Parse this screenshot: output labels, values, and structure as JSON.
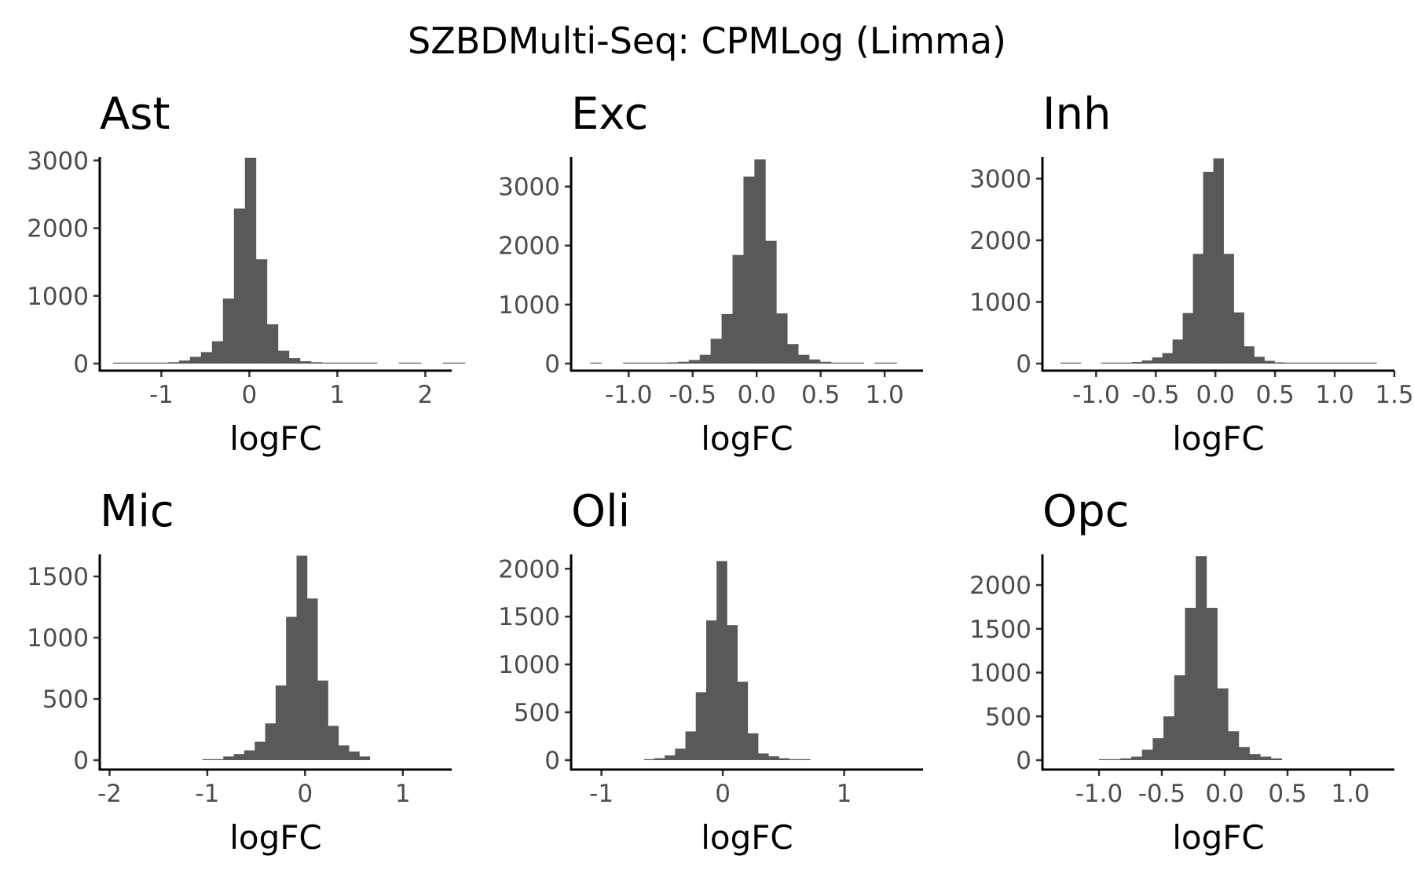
{
  "title": "SZBDMulti-Seq: CPMLog (Limma)",
  "colors": {
    "bar": "#595959",
    "axis": "#000000",
    "tick_text": "#4d4d4d"
  },
  "chart_data": [
    {
      "type": "bar",
      "title": "Ast",
      "xlabel": "logFC",
      "ylabel": "",
      "xlim": [
        -1.7,
        2.3
      ],
      "ylim": [
        0,
        3050
      ],
      "xticks": [
        -1,
        0,
        1,
        2
      ],
      "xtick_labels": [
        "-1",
        "0",
        "1",
        "2"
      ],
      "yticks": [
        0,
        1000,
        2000,
        3000
      ],
      "ytick_labels": [
        "0",
        "1000",
        "2000",
        "3000"
      ],
      "bin_start": -1.55,
      "bin_width": 0.125,
      "values": [
        2,
        2,
        3,
        5,
        8,
        20,
        45,
        100,
        170,
        330,
        960,
        2290,
        3040,
        1540,
        580,
        190,
        80,
        35,
        20,
        10,
        6,
        5,
        4,
        2,
        0,
        0,
        2,
        2,
        0,
        0,
        2,
        2
      ]
    },
    {
      "type": "bar",
      "title": "Exc",
      "xlabel": "logFC",
      "ylabel": "",
      "xlim": [
        -1.45,
        1.3
      ],
      "ylim": [
        0,
        3500
      ],
      "xticks": [
        -1.0,
        -0.5,
        0.0,
        0.5,
        1.0
      ],
      "xtick_labels": [
        "-1.0",
        "-0.5",
        "0.0",
        "0.5",
        "1.0"
      ],
      "yticks": [
        0,
        1000,
        2000,
        3000
      ],
      "ytick_labels": [
        "0",
        "1000",
        "2000",
        "3000"
      ],
      "bin_start": -1.3,
      "bin_width": 0.0855,
      "values": [
        3,
        0,
        0,
        3,
        5,
        8,
        12,
        20,
        30,
        60,
        150,
        420,
        840,
        1840,
        3170,
        3460,
        2080,
        850,
        330,
        150,
        70,
        30,
        15,
        10,
        5,
        0,
        3,
        3
      ]
    },
    {
      "type": "bar",
      "title": "Inh",
      "xlabel": "logFC",
      "ylabel": "",
      "xlim": [
        -1.45,
        1.5
      ],
      "ylim": [
        0,
        3350
      ],
      "xticks": [
        -1.0,
        -0.5,
        0.0,
        0.5,
        1.0,
        1.5
      ],
      "xtick_labels": [
        "-1.0",
        "-0.5",
        "0.0",
        "0.5",
        "1.0",
        "1.5"
      ],
      "yticks": [
        0,
        1000,
        2000,
        3000
      ],
      "ytick_labels": [
        "0",
        "1000",
        "2000",
        "3000"
      ],
      "bin_start": -1.3,
      "bin_width": 0.0855,
      "values": [
        3,
        3,
        0,
        0,
        5,
        8,
        12,
        25,
        50,
        100,
        170,
        390,
        820,
        1780,
        3110,
        3330,
        1780,
        830,
        280,
        110,
        45,
        20,
        10,
        6,
        5,
        4,
        3,
        3,
        3,
        2,
        2
      ]
    },
    {
      "type": "bar",
      "title": "Mic",
      "xlabel": "logFC",
      "ylabel": "",
      "xlim": [
        -2.1,
        1.5
      ],
      "ylim": [
        0,
        1680
      ],
      "xticks": [
        -2,
        -1,
        0,
        1
      ],
      "xtick_labels": [
        "-2",
        "-1",
        "0",
        "1"
      ],
      "yticks": [
        0,
        500,
        1000,
        1500
      ],
      "ytick_labels": [
        "0",
        "500",
        "1000",
        "1500"
      ],
      "bin_start": -1.05,
      "bin_width": 0.107,
      "values": [
        5,
        8,
        30,
        50,
        80,
        150,
        300,
        610,
        1170,
        1670,
        1320,
        650,
        280,
        120,
        70,
        30
      ]
    },
    {
      "type": "bar",
      "title": "Oli",
      "xlabel": "logFC",
      "ylabel": "",
      "xlim": [
        -1.25,
        1.65
      ],
      "ylim": [
        0,
        2150
      ],
      "xticks": [
        -1,
        0,
        1
      ],
      "xtick_labels": [
        "-1",
        "0",
        "1"
      ],
      "yticks": [
        0,
        500,
        1000,
        1500,
        2000
      ],
      "ytick_labels": [
        "0",
        "500",
        "1000",
        "1500",
        "2000"
      ],
      "bin_start": -0.65,
      "bin_width": 0.0855,
      "values": [
        10,
        20,
        50,
        120,
        300,
        710,
        1460,
        2080,
        1410,
        820,
        280,
        70,
        40,
        20,
        10,
        10
      ]
    },
    {
      "type": "bar",
      "title": "Opc",
      "xlabel": "logFC",
      "ylabel": "",
      "xlim": [
        -1.45,
        1.35
      ],
      "ylim": [
        0,
        2350
      ],
      "xticks": [
        -1.0,
        -0.5,
        0.0,
        0.5,
        1.0
      ],
      "xtick_labels": [
        "-1.0",
        "-0.5",
        "0.0",
        "0.5",
        "1.0"
      ],
      "yticks": [
        0,
        500,
        1000,
        1500,
        2000
      ],
      "ytick_labels": [
        "0",
        "500",
        "1000",
        "1500",
        "2000"
      ],
      "bin_start": -1.0,
      "bin_width": 0.0855,
      "values": [
        5,
        10,
        20,
        40,
        120,
        250,
        500,
        970,
        1740,
        2330,
        1740,
        820,
        330,
        150,
        70,
        40,
        20
      ]
    }
  ]
}
